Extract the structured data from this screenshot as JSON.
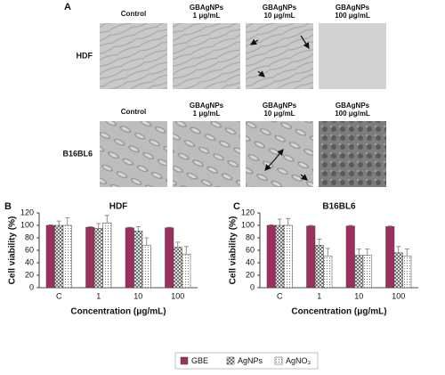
{
  "panel_a": {
    "label": "A",
    "rows": [
      {
        "label": "HDF",
        "columns": [
          [
            "Control"
          ],
          [
            "GBAgNPs",
            "1 μg/mL"
          ],
          [
            "GBAgNPs",
            "10 μg/mL"
          ],
          [
            "GBAgNPs",
            "100 μg/mL"
          ]
        ]
      },
      {
        "label": "B16BL6",
        "columns": [
          [
            "Control"
          ],
          [
            "GBAgNPs",
            "1 μg/mL"
          ],
          [
            "GBAgNPs",
            "10 μg/mL"
          ],
          [
            "GBAgNPs",
            "100 μg/mL"
          ]
        ]
      }
    ]
  },
  "chart_data": [
    {
      "type": "bar",
      "panel": "B",
      "title": "HDF",
      "y_label": "Cell viability (%)",
      "x_label": "Concentration (μg/mL)",
      "categories": [
        "C",
        "1",
        "10",
        "100"
      ],
      "series": [
        {
          "name": "GBE",
          "color": "#9c2f5e",
          "pattern": "solid",
          "values": [
            100,
            97,
            96,
            96
          ],
          "errors": [
            1,
            1,
            1,
            1
          ]
        },
        {
          "name": "AgNPs",
          "color": "#8a8a8a",
          "pattern": "crosshatch",
          "values": [
            100,
            95,
            91,
            65
          ],
          "errors": [
            7,
            8,
            7,
            8
          ]
        },
        {
          "name": "AgNO₃",
          "color": "#b8b8b8",
          "pattern": "dots",
          "values": [
            100,
            104,
            68,
            54
          ],
          "errors": [
            12,
            12,
            12,
            12
          ]
        }
      ],
      "ylim": [
        0,
        120
      ],
      "yticks": [
        0,
        20,
        40,
        60,
        80,
        100,
        120
      ]
    },
    {
      "type": "bar",
      "panel": "C",
      "title": "B16BL6",
      "y_label": "Cell viability (%)",
      "x_label": "Concentration (μg/mL)",
      "categories": [
        "C",
        "1",
        "10",
        "100"
      ],
      "series": [
        {
          "name": "GBE",
          "color": "#9c2f5e",
          "pattern": "solid",
          "values": [
            100,
            99,
            99,
            98
          ],
          "errors": [
            1,
            1,
            1,
            1
          ]
        },
        {
          "name": "AgNPs",
          "color": "#8a8a8a",
          "pattern": "crosshatch",
          "values": [
            100,
            68,
            52,
            56
          ],
          "errors": [
            10,
            10,
            10,
            10
          ]
        },
        {
          "name": "AgNO₃",
          "color": "#b8b8b8",
          "pattern": "dots",
          "values": [
            100,
            51,
            52,
            51
          ],
          "errors": [
            11,
            12,
            10,
            11
          ]
        }
      ],
      "ylim": [
        0,
        120
      ],
      "yticks": [
        0,
        20,
        40,
        60,
        80,
        100,
        120
      ]
    }
  ]
}
